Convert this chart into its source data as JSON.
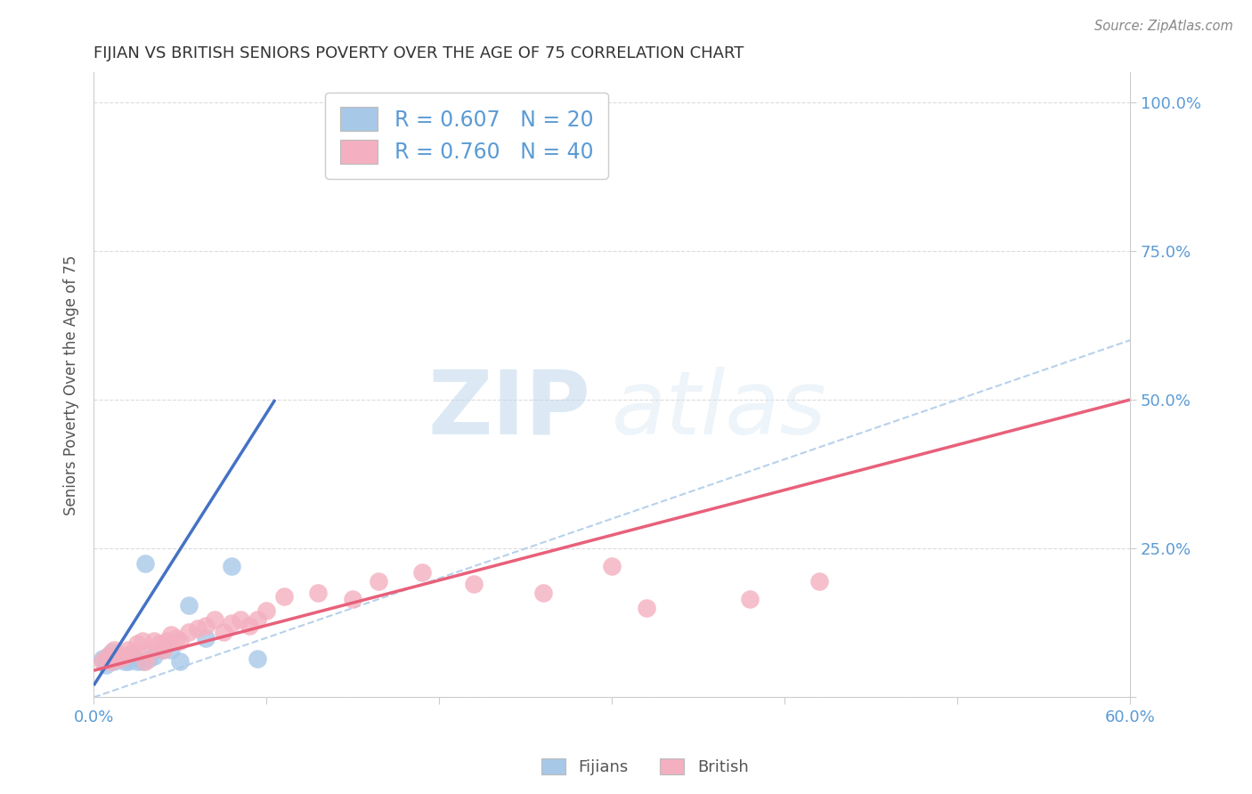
{
  "title": "FIJIAN VS BRITISH SENIORS POVERTY OVER THE AGE OF 75 CORRELATION CHART",
  "source": "Source: ZipAtlas.com",
  "ylabel": "Seniors Poverty Over the Age of 75",
  "xlim": [
    0.0,
    0.6
  ],
  "ylim": [
    0.0,
    1.05
  ],
  "xticks": [
    0.0,
    0.1,
    0.2,
    0.3,
    0.4,
    0.5,
    0.6
  ],
  "yticks": [
    0.0,
    0.25,
    0.5,
    0.75,
    1.0
  ],
  "fijian_R": 0.607,
  "fijian_N": 20,
  "british_R": 0.76,
  "british_N": 40,
  "fijian_color": "#a8c8e8",
  "british_color": "#f4b0c0",
  "fijian_line_color": "#4472c4",
  "british_line_color": "#e8607a",
  "ref_line_color": "#b0cce8",
  "grid_color": "#cccccc",
  "axis_label_color": "#5b9bd5",
  "legend_text_color": "#5b9bd5",
  "title_color": "#333333",
  "ylabel_color": "#555555",
  "source_color": "#888888",
  "fijians_x": [
    0.005,
    0.007,
    0.01,
    0.012,
    0.015,
    0.018,
    0.02,
    0.022,
    0.025,
    0.028,
    0.03,
    0.032,
    0.035,
    0.04,
    0.045,
    0.05,
    0.055,
    0.065,
    0.08,
    0.095
  ],
  "fijians_y": [
    0.065,
    0.055,
    0.075,
    0.06,
    0.065,
    0.06,
    0.06,
    0.07,
    0.06,
    0.06,
    0.225,
    0.065,
    0.07,
    0.08,
    0.08,
    0.06,
    0.155,
    0.1,
    0.22,
    0.065
  ],
  "british_x": [
    0.005,
    0.008,
    0.01,
    0.012,
    0.015,
    0.018,
    0.02,
    0.022,
    0.025,
    0.028,
    0.03,
    0.032,
    0.035,
    0.038,
    0.04,
    0.042,
    0.045,
    0.048,
    0.05,
    0.055,
    0.06,
    0.065,
    0.07,
    0.075,
    0.08,
    0.085,
    0.09,
    0.095,
    0.1,
    0.11,
    0.13,
    0.15,
    0.165,
    0.19,
    0.22,
    0.26,
    0.3,
    0.32,
    0.38,
    0.42
  ],
  "british_y": [
    0.06,
    0.07,
    0.06,
    0.08,
    0.065,
    0.07,
    0.08,
    0.075,
    0.09,
    0.095,
    0.06,
    0.075,
    0.095,
    0.09,
    0.08,
    0.095,
    0.105,
    0.1,
    0.095,
    0.11,
    0.115,
    0.12,
    0.13,
    0.11,
    0.125,
    0.13,
    0.12,
    0.13,
    0.145,
    0.17,
    0.175,
    0.165,
    0.195,
    0.21,
    0.19,
    0.175,
    0.22,
    0.15,
    0.165,
    0.195
  ],
  "fijian_line_x": [
    0.0,
    0.105
  ],
  "fijian_line_y": [
    0.02,
    0.5
  ],
  "british_line_x": [
    0.0,
    0.6
  ],
  "british_line_y": [
    0.045,
    0.5
  ],
  "ref_line_x": [
    0.0,
    1.0
  ],
  "ref_line_y": [
    0.0,
    1.0
  ],
  "watermark_zip": "ZIP",
  "watermark_atlas": "atlas",
  "background_color": "#ffffff"
}
